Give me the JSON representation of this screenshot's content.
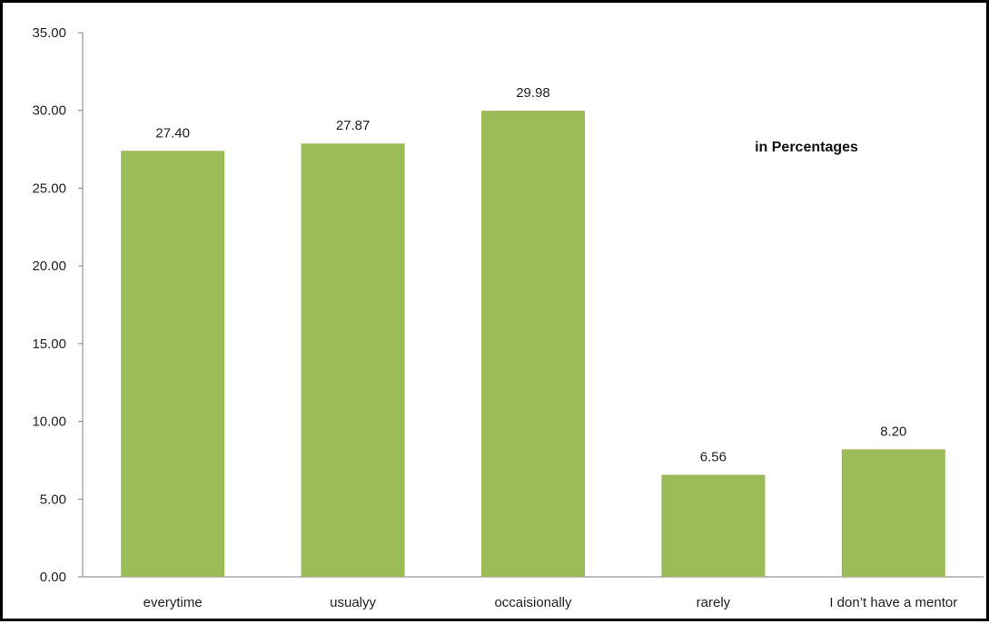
{
  "chart_data": {
    "type": "bar",
    "title": "in Percentages",
    "legend": "none",
    "grid": false,
    "xlabel": "",
    "ylabel": "",
    "categories": [
      "everytime",
      "usualyy",
      "occaisionally",
      "rarely",
      "I don’t have a mentor"
    ],
    "values": [
      27.4,
      27.87,
      29.98,
      6.56,
      8.2
    ],
    "value_labels": [
      "27.40",
      "27.87",
      "29.98",
      "6.56",
      "8.20"
    ],
    "ylim": [
      0,
      35
    ],
    "y_ticks": [
      0,
      5,
      10,
      15,
      20,
      25,
      30,
      35
    ],
    "y_tick_labels": [
      "0.00",
      "5.00",
      "10.00",
      "15.00",
      "20.00",
      "25.00",
      "30.00",
      "35.00"
    ],
    "colors": {
      "bar": "#9BBB59",
      "axis": "#7f7f7f",
      "text": "#222222"
    }
  }
}
